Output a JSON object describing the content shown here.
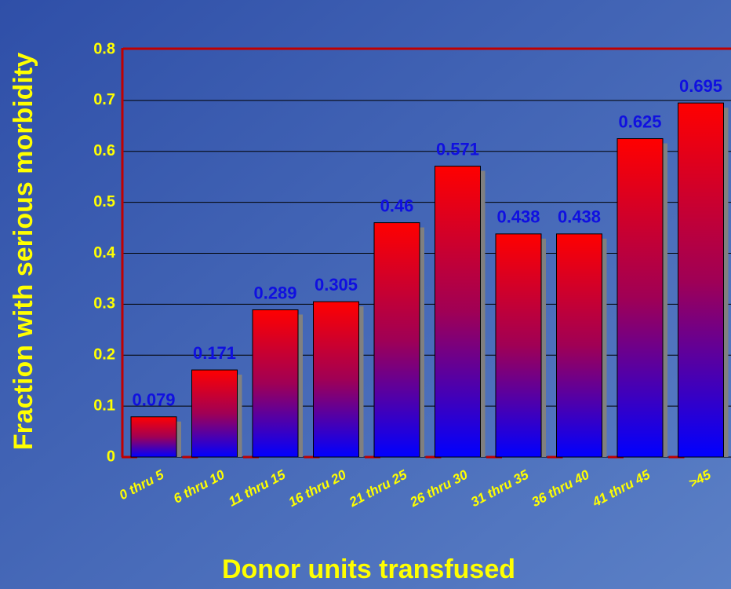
{
  "chart_data": {
    "type": "bar",
    "x_label": "Donor units transfused",
    "y_label": "Fraction with serious morbidity",
    "categories": [
      "0 thru 5",
      "6 thru 10",
      "11 thru 15",
      "16 thru 20",
      "21 thru 25",
      "26 thru 30",
      "31 thru 35",
      "36 thru 40",
      "41 thru 45",
      ">45"
    ],
    "values": [
      0.079,
      0.171,
      0.289,
      0.305,
      0.46,
      0.571,
      0.438,
      0.438,
      0.625,
      0.695
    ],
    "ylim": [
      0,
      0.8
    ],
    "yticks": [
      0,
      0.1,
      0.2,
      0.3,
      0.4,
      0.5,
      0.6,
      0.7,
      0.8
    ],
    "grid": true
  }
}
